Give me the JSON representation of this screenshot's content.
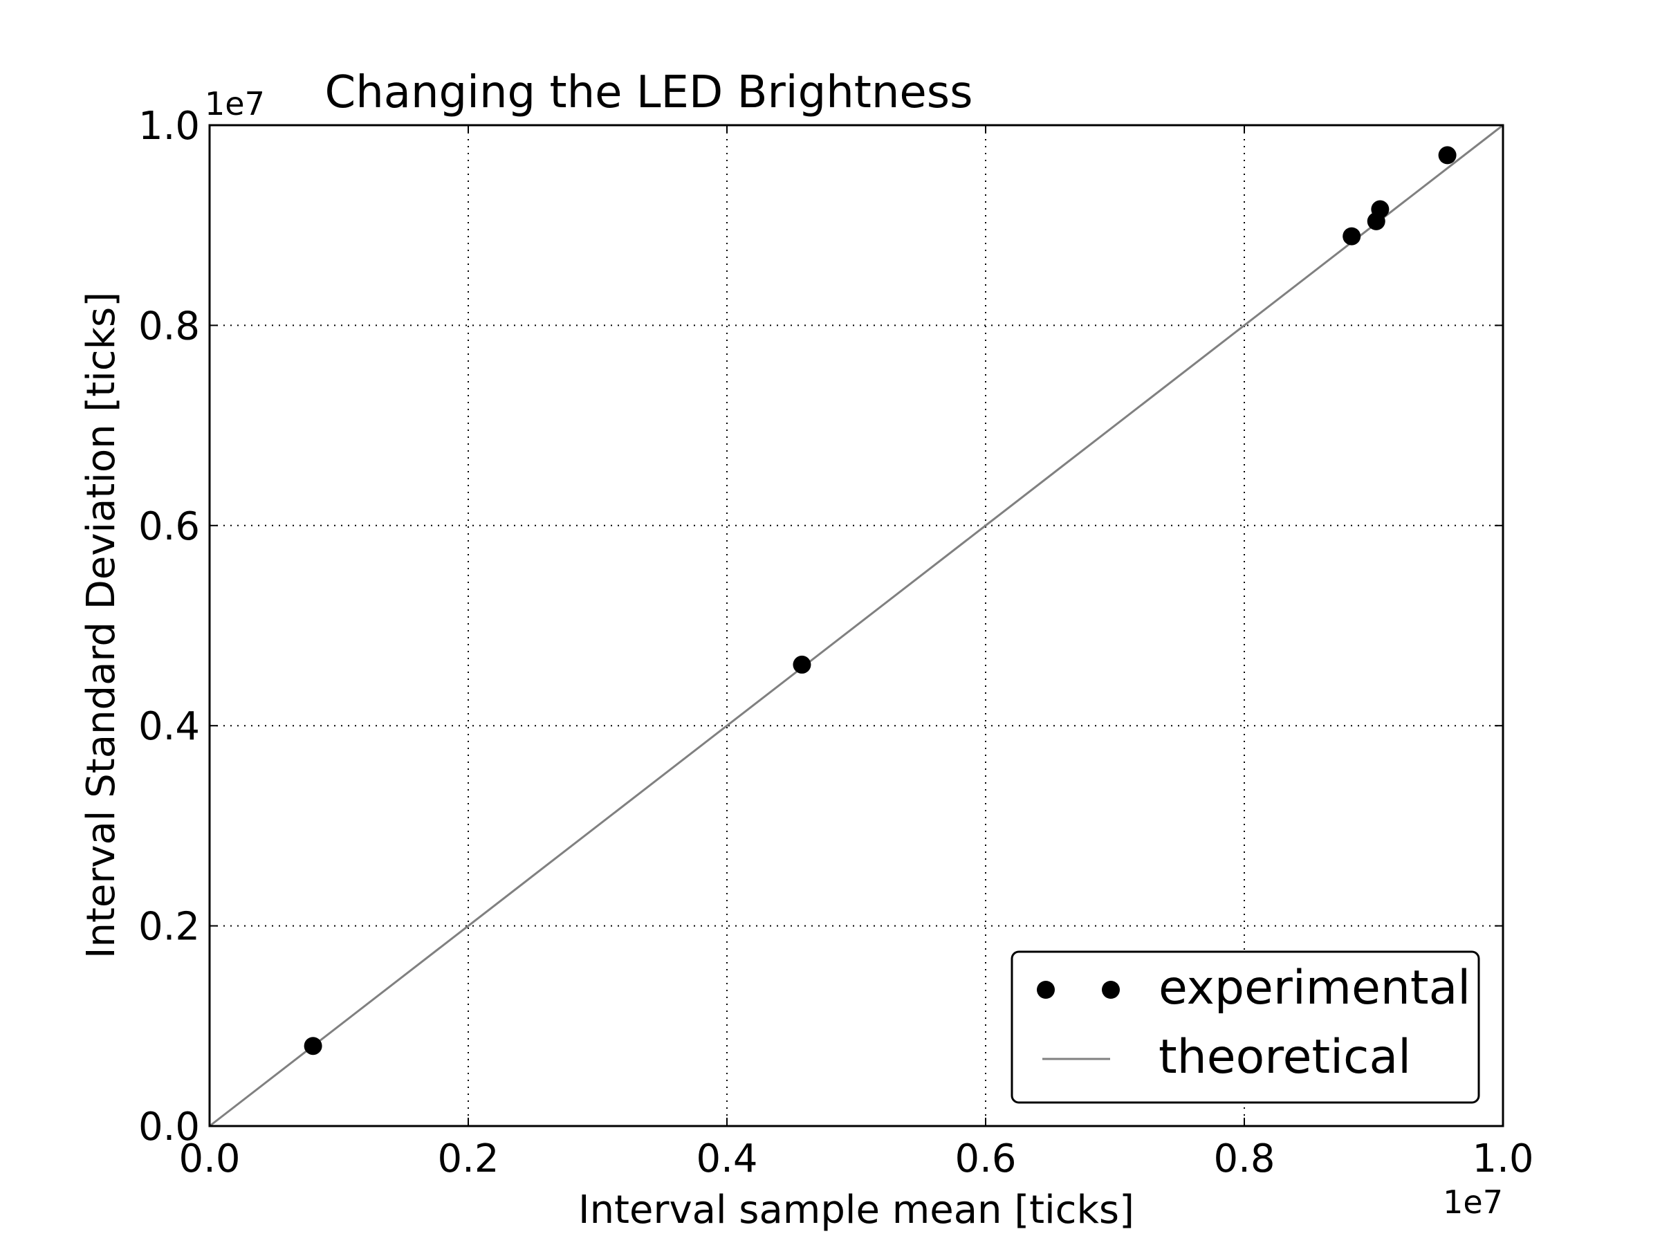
{
  "chart_data": {
    "type": "scatter",
    "title": "Changing the LED Brightness",
    "xlabel": "Interval sample mean [ticks]",
    "ylabel": "Interval Standard Deviation [ticks]",
    "x_offset_label": "1e7",
    "y_offset_label": "1e7",
    "xlim": [
      0.0,
      1.0
    ],
    "ylim": [
      0.0,
      1.0
    ],
    "xticks": [
      "0.0",
      "0.2",
      "0.4",
      "0.6",
      "0.8",
      "1.0"
    ],
    "yticks": [
      "0.0",
      "0.2",
      "0.4",
      "0.6",
      "0.8",
      "1.0"
    ],
    "grid": true,
    "legend_position": "lower-right",
    "series": [
      {
        "name": "experimental",
        "kind": "points",
        "color": "#000000",
        "points": [
          {
            "x": 0.08,
            "y": 0.08
          },
          {
            "x": 0.458,
            "y": 0.461
          },
          {
            "x": 0.883,
            "y": 0.889
          },
          {
            "x": 0.902,
            "y": 0.904
          },
          {
            "x": 0.905,
            "y": 0.916
          },
          {
            "x": 0.957,
            "y": 0.97
          }
        ]
      },
      {
        "name": "theoretical",
        "kind": "line",
        "color": "#808080",
        "points": [
          {
            "x": 0.0,
            "y": 0.0
          },
          {
            "x": 1.0,
            "y": 1.0
          }
        ]
      }
    ]
  }
}
